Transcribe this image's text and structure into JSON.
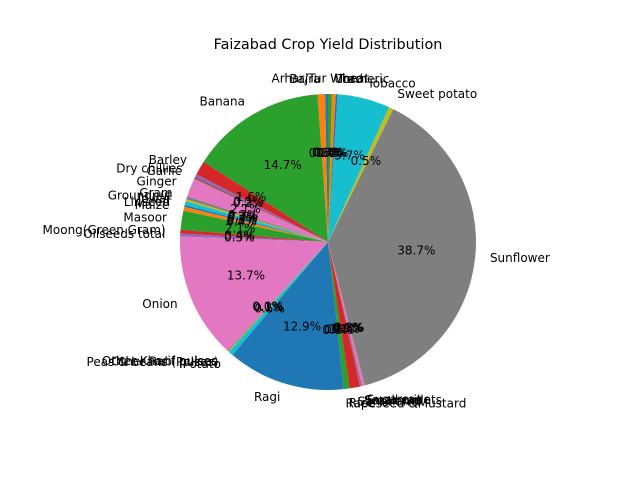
{
  "chart_data": {
    "type": "pie",
    "title": "Faizabad Crop Yield Distribution",
    "label_format": "percent_one_decimal",
    "start_angle_deg": 90,
    "direction": "counterclockwise",
    "slices": [
      {
        "label": "Arhar/Tur",
        "value": 0.3,
        "color": "#1f77b4"
      },
      {
        "label": "Bajra",
        "value": 0.8,
        "color": "#ff7f0e"
      },
      {
        "label": "Banana",
        "value": 14.2,
        "color": "#2ca02c"
      },
      {
        "label": "Barley",
        "value": 1.5,
        "color": "#d62728"
      },
      {
        "label": "Dry chillies",
        "value": 0.3,
        "color": "#9467bd"
      },
      {
        "label": "Garlic",
        "value": 0.2,
        "color": "#8c564b"
      },
      {
        "label": "Ginger",
        "value": 2.0,
        "color": "#e377c2"
      },
      {
        "label": "Gram",
        "value": 0.3,
        "color": "#7f7f7f"
      },
      {
        "label": "Groundnut",
        "value": 0.2,
        "color": "#bcbd22"
      },
      {
        "label": "Jowar",
        "value": 0.4,
        "color": "#17becf"
      },
      {
        "label": "Linseed",
        "value": 0.2,
        "color": "#1f77b4"
      },
      {
        "label": "Maize",
        "value": 0.4,
        "color": "#ff7f0e"
      },
      {
        "label": "Masoor",
        "value": 2.0,
        "color": "#2ca02c"
      },
      {
        "label": "Moong(Green Gram)",
        "value": 0.4,
        "color": "#d62728"
      },
      {
        "label": "Oilseeds total",
        "value": 0.3,
        "color": "#9467bd"
      },
      {
        "label": "Onion",
        "value": 13.2,
        "color": "#e377c2"
      },
      {
        "label": "Other Kharif pulses",
        "value": 0.0,
        "color": "#8c564b"
      },
      {
        "label": "Other Rabi pulses",
        "value": 0.1,
        "color": "#7f7f7f"
      },
      {
        "label": "Peas & beans (Pulses)",
        "value": 0.1,
        "color": "#bcbd22"
      },
      {
        "label": "Potato",
        "value": 0.5,
        "color": "#17becf"
      },
      {
        "label": "Ragi",
        "value": 12.4,
        "color": "#1f77b4"
      },
      {
        "label": "Rapeseed &Mustard",
        "value": 0.0,
        "color": "#ff7f0e"
      },
      {
        "label": "Rice",
        "value": 0.6,
        "color": "#2ca02c"
      },
      {
        "label": "Sannhamp",
        "value": 1.1,
        "color": "#d62728"
      },
      {
        "label": "Sesamum",
        "value": 0.1,
        "color": "#9467bd"
      },
      {
        "label": "Small millets",
        "value": 0.1,
        "color": "#8c564b"
      },
      {
        "label": "Sugarcane",
        "value": 0.3,
        "color": "#e377c2"
      },
      {
        "label": "Sunflower",
        "value": 37.3,
        "color": "#7f7f7f"
      },
      {
        "label": "Sweet potato",
        "value": 0.5,
        "color": "#bcbd22"
      },
      {
        "label": "Tobacco",
        "value": 5.5,
        "color": "#17becf"
      },
      {
        "label": "Turmeric",
        "value": 0.2,
        "color": "#1f77b4"
      },
      {
        "label": "Urad",
        "value": 0.4,
        "color": "#ff7f0e"
      },
      {
        "label": "Wheat",
        "value": 0.4,
        "color": "#2ca02c"
      }
    ]
  }
}
